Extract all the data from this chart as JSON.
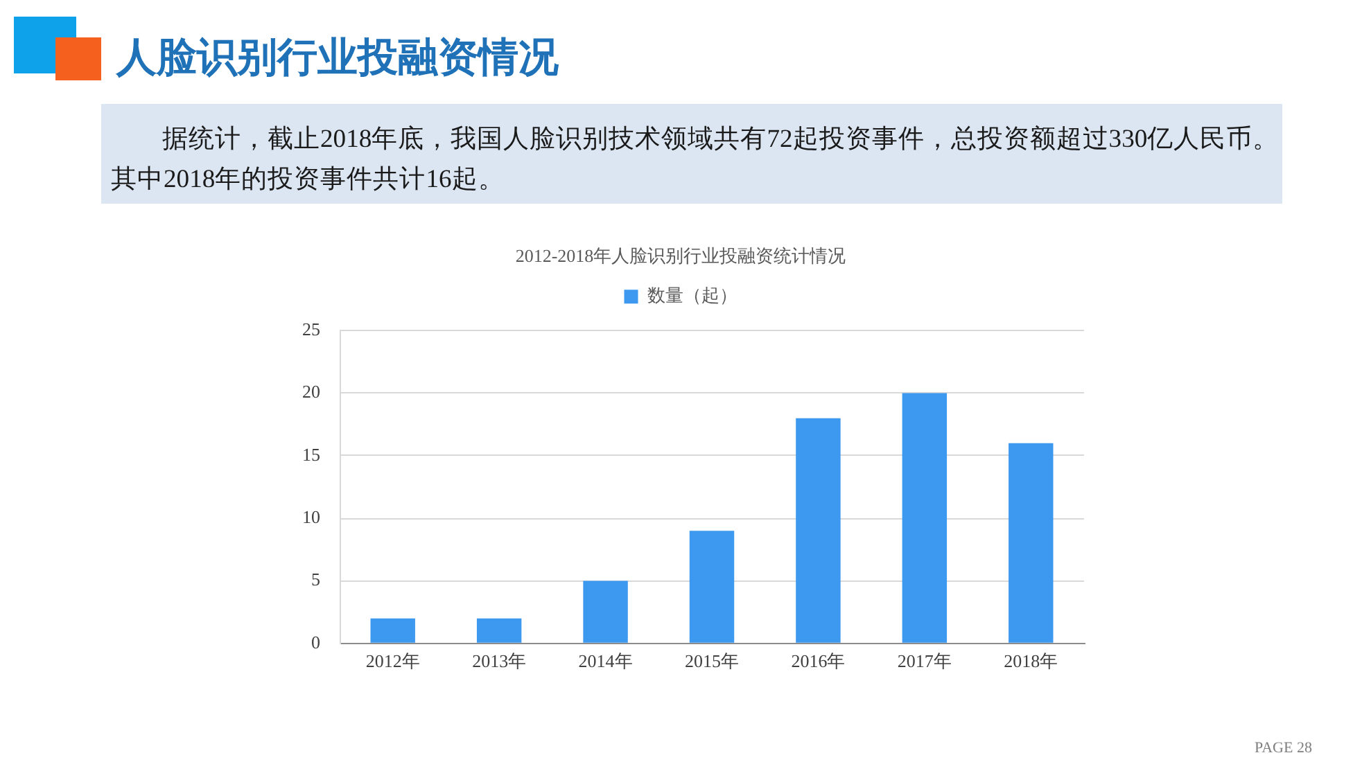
{
  "chart_data": {
    "type": "bar",
    "title": "2012-2018年人脸识别行业投融资统计情况",
    "categories": [
      "2012年",
      "2013年",
      "2014年",
      "2015年",
      "2016年",
      "2017年",
      "2018年"
    ],
    "series": [
      {
        "name": "数量（起）",
        "color": "#3d98ef",
        "values": [
          2,
          2,
          5,
          9,
          18,
          20,
          16
        ]
      }
    ],
    "ylim": [
      0,
      25
    ],
    "yticks": [
      0,
      5,
      10,
      15,
      20,
      25
    ],
    "grid": "y",
    "legend": "top",
    "annotations": [
      "人脸识别行业投融资情况",
      "据统计，截止2018年底，我国人脸识别技术领域共有72起投资事件，总投资额超过330亿人民币。",
      "其中2018年的投资事件共计16起。",
      "PAGE 28"
    ]
  }
}
